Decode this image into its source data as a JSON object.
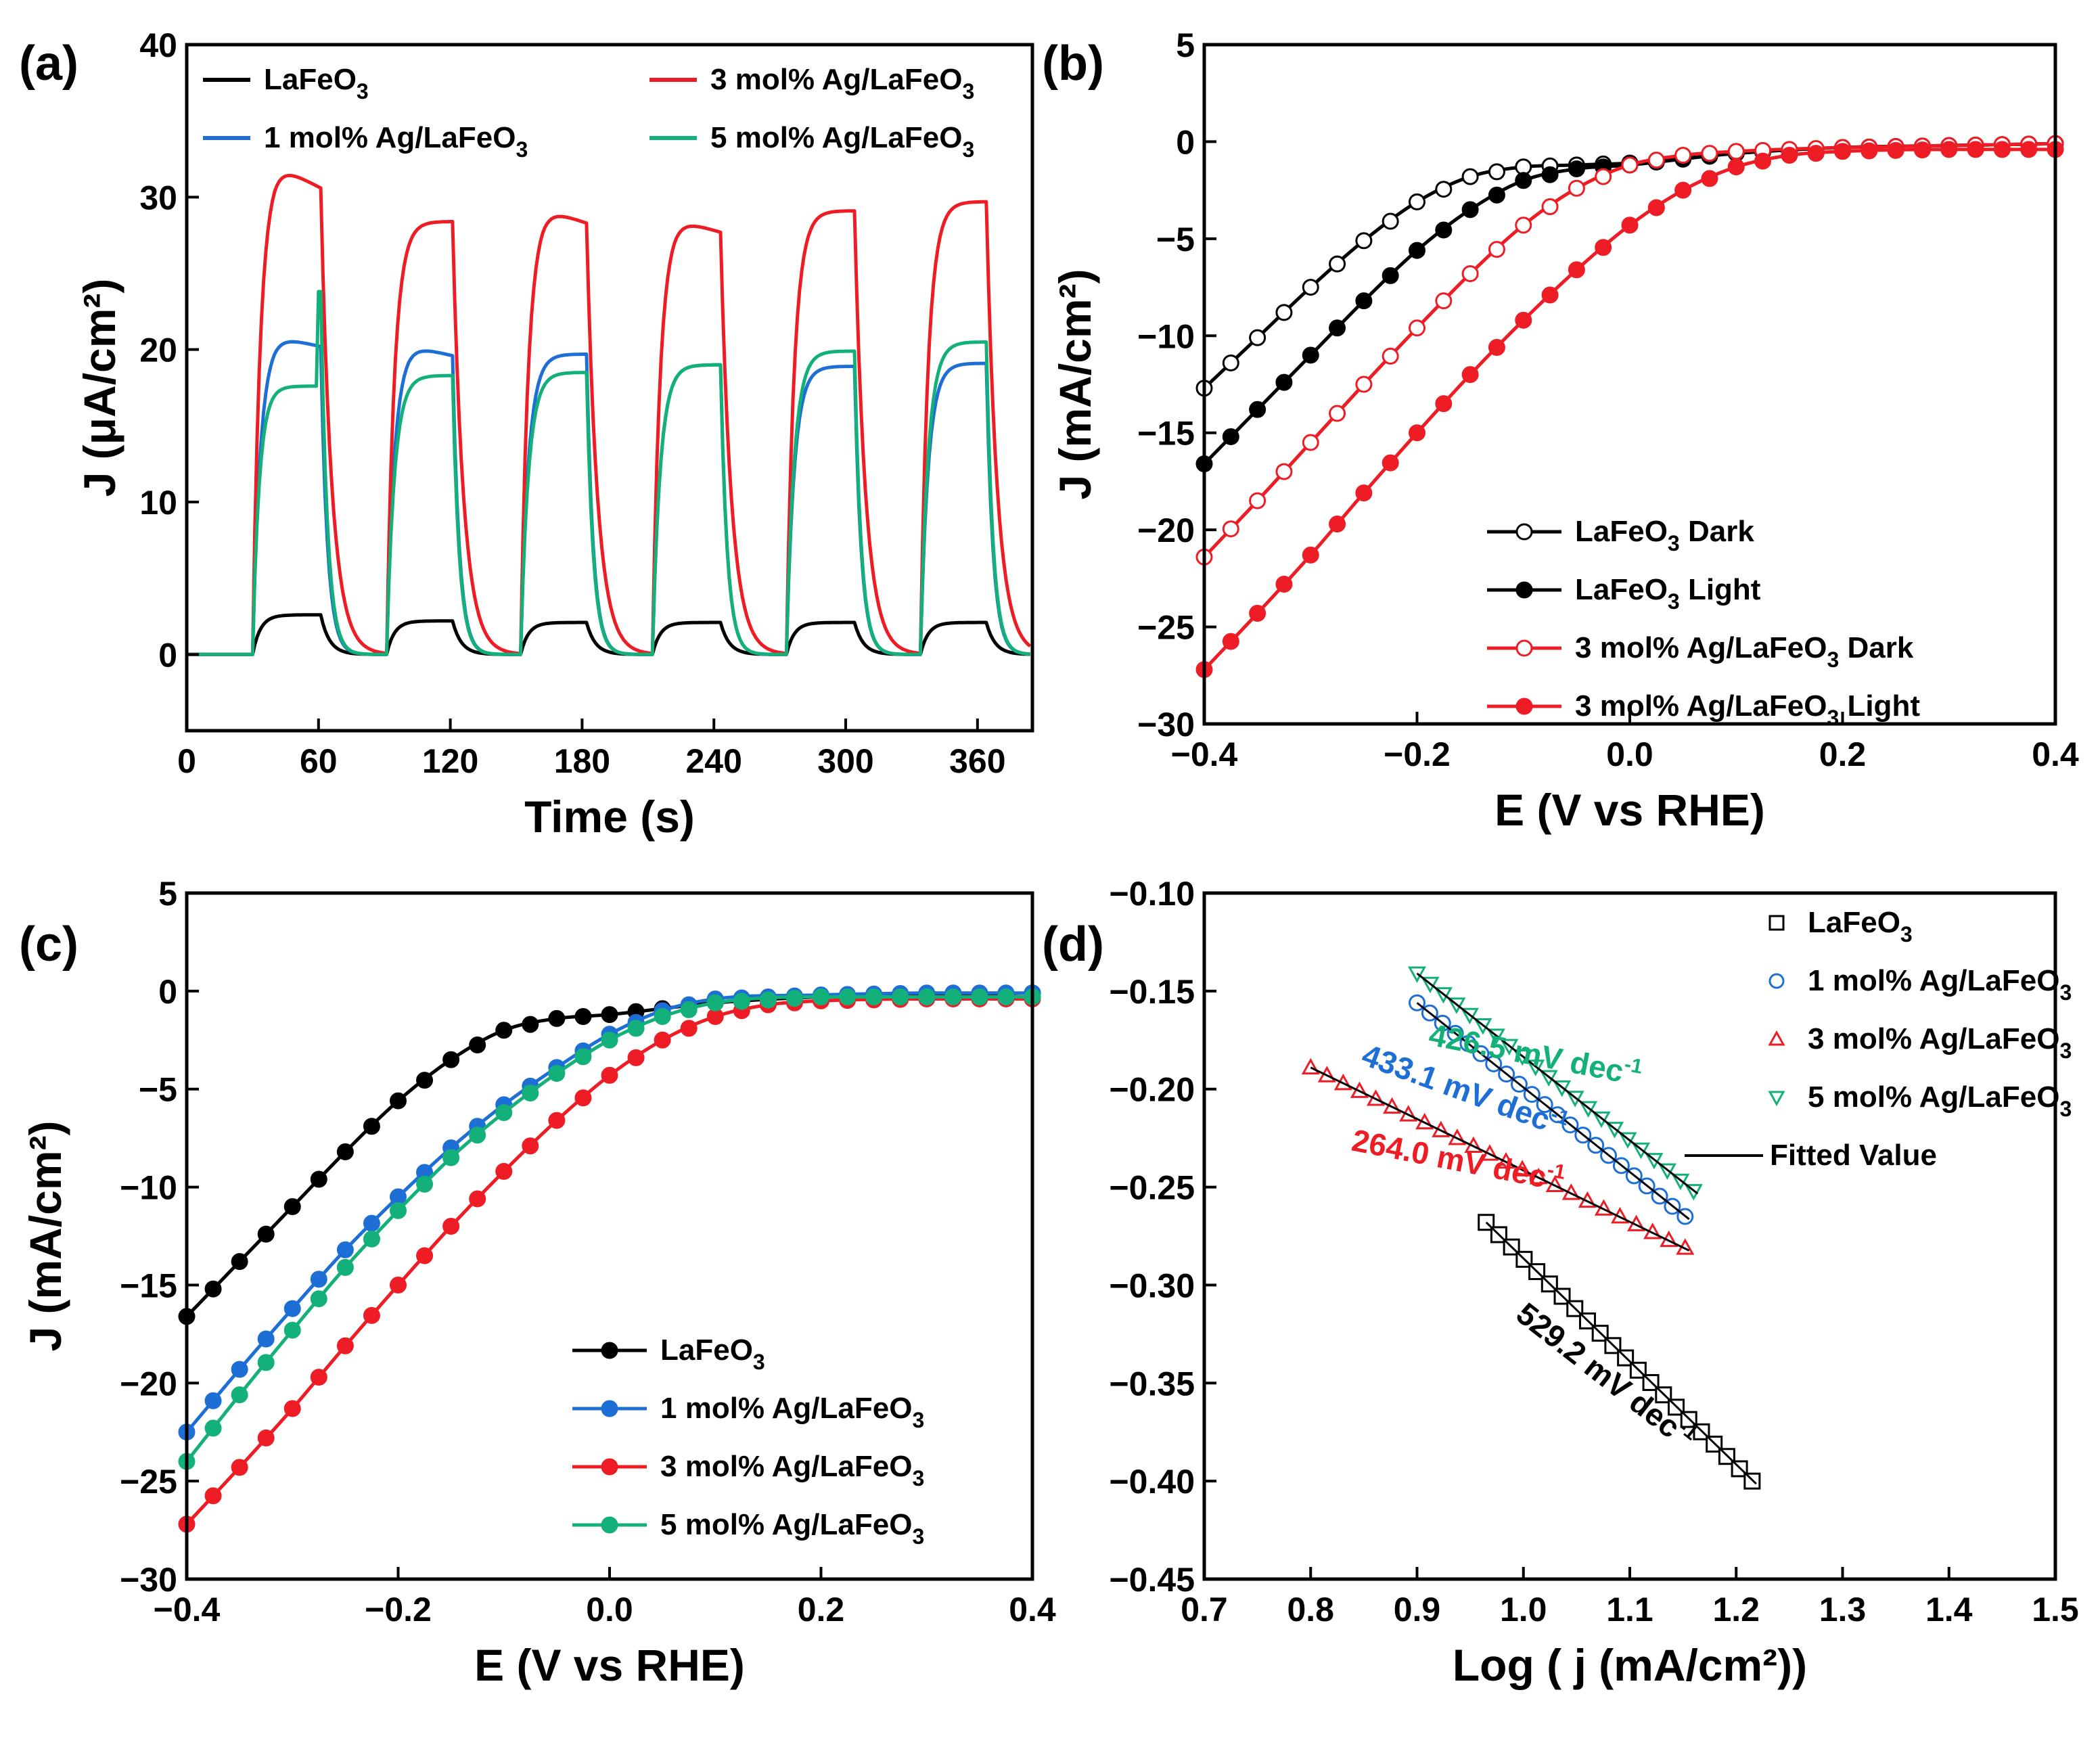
{
  "colors": {
    "black": "#000000",
    "blue": "#1d6fd6",
    "red": "#ee1c25",
    "green": "#14b07a",
    "red_light": "#f08a8a"
  },
  "chart_data": [
    {
      "panel": "(a)",
      "type": "line",
      "xlabel": "Time (s)",
      "ylabel": "J (μA/cm²)",
      "xlim": [
        0,
        385
      ],
      "ylim": [
        -5,
        40
      ],
      "xticks": [
        0,
        60,
        120,
        180,
        240,
        300,
        360
      ],
      "yticks": [
        0,
        10,
        20,
        30,
        40
      ],
      "cycles": [
        [
          30,
          61
        ],
        [
          91,
          121
        ],
        [
          152,
          182
        ],
        [
          212,
          243
        ],
        [
          273,
          304
        ],
        [
          334,
          364
        ]
      ],
      "legend_position": "top",
      "series": [
        {
          "name": "LaFeO3",
          "label": "LaFeO",
          "sub": "3",
          "suffix": "",
          "color": "#000000",
          "plateau": [
            2.6,
            2.2,
            2.1,
            2.1,
            2.1,
            2.1
          ],
          "peak": [
            2.6,
            2.2,
            2.1,
            2.1,
            2.1,
            2.1
          ]
        },
        {
          "name": "1 mol% Ag/LaFeO3",
          "label": "1 mol% Ag/LaFeO",
          "sub": "3",
          "suffix": "",
          "color": "#1d6fd6",
          "plateau": [
            20.2,
            19.6,
            19.7,
            19.0,
            18.9,
            19.1
          ],
          "peak": [
            20.9,
            20.3,
            19.8,
            19.1,
            19.0,
            19.3
          ]
        },
        {
          "name": "3 mol% Ag/LaFeO3",
          "label": "3 mol% Ag/LaFeO",
          "sub": "3",
          "suffix": "",
          "color": "#ee1c25",
          "plateau": [
            30.6,
            28.4,
            28.3,
            27.7,
            29.1,
            29.7
          ],
          "peak": [
            32.2,
            28.7,
            29.3,
            28.6,
            29.2,
            30.0
          ]
        },
        {
          "name": "5 mol% Ag/LaFeO3",
          "label": "5 mol% Ag/LaFeO",
          "sub": "3",
          "suffix": "",
          "color": "#14b07a",
          "plateau": [
            17.6,
            18.3,
            18.5,
            19.0,
            19.9,
            20.5
          ],
          "peak": [
            23.8,
            18.3,
            18.5,
            19.0,
            19.9,
            20.5
          ]
        }
      ]
    },
    {
      "panel": "(b)",
      "type": "line",
      "xlabel": "E (V vs RHE)",
      "ylabel": "J (mA/cm²)",
      "xlim": [
        -0.4,
        0.4
      ],
      "ylim": [
        -30,
        5
      ],
      "xticks": [
        -0.4,
        -0.2,
        0.0,
        0.2,
        0.4
      ],
      "yticks": [
        5,
        0,
        -5,
        -10,
        -15,
        -20,
        -25,
        -30
      ],
      "legend_position": "bottom-right",
      "series": [
        {
          "name": "LaFeO3 Dark",
          "label": "LaFeO",
          "sub": "3",
          "suffix": " Dark",
          "color": "#000000",
          "marker": "open",
          "x": [
            -0.4,
            -0.35,
            -0.3,
            -0.25,
            -0.2,
            -0.15,
            -0.1,
            -0.05,
            0.0,
            0.1,
            0.2,
            0.3,
            0.4
          ],
          "y": [
            -12.7,
            -10.1,
            -7.5,
            -5.1,
            -3.1,
            -1.8,
            -1.3,
            -1.2,
            -1.1,
            -0.6,
            -0.3,
            -0.2,
            -0.1
          ]
        },
        {
          "name": "LaFeO3 Light",
          "label": "LaFeO",
          "sub": "3",
          "suffix": " Light",
          "color": "#000000",
          "marker": "filled",
          "x": [
            -0.4,
            -0.35,
            -0.3,
            -0.25,
            -0.2,
            -0.15,
            -0.1,
            -0.05,
            0.0,
            0.1,
            0.2,
            0.3,
            0.4
          ],
          "y": [
            -16.6,
            -13.8,
            -11.0,
            -8.2,
            -5.6,
            -3.5,
            -2.0,
            -1.4,
            -1.2,
            -0.6,
            -0.3,
            -0.2,
            -0.1
          ]
        },
        {
          "name": "3 mol% Ag/LaFeO3 Dark",
          "label": "3 mol% Ag/LaFeO",
          "sub": "3",
          "suffix": " Dark",
          "color": "#ee1c25",
          "marker": "open",
          "x": [
            -0.4,
            -0.35,
            -0.3,
            -0.25,
            -0.2,
            -0.15,
            -0.1,
            -0.05,
            0.0,
            0.05,
            0.1,
            0.2,
            0.3,
            0.4
          ],
          "y": [
            -21.4,
            -18.5,
            -15.5,
            -12.5,
            -9.6,
            -6.8,
            -4.3,
            -2.4,
            -1.2,
            -0.7,
            -0.5,
            -0.3,
            -0.2,
            -0.1
          ]
        },
        {
          "name": "3 mol% Ag/LaFeO3 Light",
          "label": "3 mol% Ag/LaFeO",
          "sub": "3",
          "suffix": " Light",
          "color": "#ee1c25",
          "marker": "filled",
          "x": [
            -0.4,
            -0.35,
            -0.3,
            -0.25,
            -0.2,
            -0.15,
            -0.1,
            -0.05,
            0.0,
            0.05,
            0.1,
            0.15,
            0.2,
            0.3,
            0.4
          ],
          "y": [
            -27.2,
            -24.3,
            -21.3,
            -18.1,
            -15.0,
            -12.0,
            -9.2,
            -6.6,
            -4.3,
            -2.5,
            -1.3,
            -0.7,
            -0.5,
            -0.4,
            -0.4
          ]
        }
      ]
    },
    {
      "panel": "(c)",
      "type": "line",
      "xlabel": "E (V vs RHE)",
      "ylabel": "J (mA/cm²)",
      "xlim": [
        -0.4,
        0.4
      ],
      "ylim": [
        -30,
        5
      ],
      "xticks": [
        -0.4,
        -0.2,
        0.0,
        0.2,
        0.4
      ],
      "yticks": [
        5,
        0,
        -5,
        -10,
        -15,
        -20,
        -25,
        -30
      ],
      "legend_position": "bottom-right",
      "series": [
        {
          "name": "LaFeO3",
          "label": "LaFeO",
          "sub": "3",
          "suffix": "",
          "color": "#000000",
          "marker": "filled",
          "x": [
            -0.4,
            -0.35,
            -0.3,
            -0.25,
            -0.2,
            -0.15,
            -0.1,
            -0.05,
            0.0,
            0.1,
            0.2,
            0.3,
            0.4
          ],
          "y": [
            -16.6,
            -13.8,
            -11.0,
            -8.2,
            -5.6,
            -3.5,
            -2.0,
            -1.4,
            -1.2,
            -0.6,
            -0.3,
            -0.2,
            -0.1
          ]
        },
        {
          "name": "1 mol% Ag/LaFeO3",
          "label": "1 mol% Ag/LaFeO",
          "sub": "3",
          "suffix": "",
          "color": "#1d6fd6",
          "marker": "filled",
          "x": [
            -0.4,
            -0.35,
            -0.3,
            -0.25,
            -0.2,
            -0.15,
            -0.1,
            -0.05,
            0.0,
            0.05,
            0.1,
            0.2,
            0.3,
            0.4
          ],
          "y": [
            -22.5,
            -19.3,
            -16.2,
            -13.2,
            -10.5,
            -8.0,
            -5.8,
            -3.9,
            -2.2,
            -1.0,
            -0.4,
            -0.2,
            -0.1,
            -0.1
          ]
        },
        {
          "name": "3 mol% Ag/LaFeO3",
          "label": "3 mol% Ag/LaFeO",
          "sub": "3",
          "suffix": "",
          "color": "#ee1c25",
          "marker": "filled",
          "x": [
            -0.4,
            -0.35,
            -0.3,
            -0.25,
            -0.2,
            -0.15,
            -0.1,
            -0.05,
            0.0,
            0.05,
            0.1,
            0.15,
            0.2,
            0.3,
            0.4
          ],
          "y": [
            -27.2,
            -24.3,
            -21.3,
            -18.1,
            -15.0,
            -12.0,
            -9.2,
            -6.6,
            -4.3,
            -2.5,
            -1.3,
            -0.7,
            -0.5,
            -0.4,
            -0.4
          ]
        },
        {
          "name": "5 mol% Ag/LaFeO3",
          "label": "5 mol% Ag/LaFeO",
          "sub": "3",
          "suffix": "",
          "color": "#14b07a",
          "marker": "filled",
          "x": [
            -0.4,
            -0.35,
            -0.3,
            -0.25,
            -0.2,
            -0.15,
            -0.1,
            -0.05,
            0.0,
            0.05,
            0.1,
            0.2,
            0.3,
            0.4
          ],
          "y": [
            -24.0,
            -20.6,
            -17.3,
            -14.1,
            -11.2,
            -8.5,
            -6.2,
            -4.2,
            -2.5,
            -1.3,
            -0.6,
            -0.3,
            -0.3,
            -0.3
          ]
        }
      ]
    },
    {
      "panel": "(d)",
      "type": "scatter",
      "xlabel": "Log ( j (mA/cm²))",
      "ylabel": "",
      "xlim": [
        0.7,
        1.5
      ],
      "ylim": [
        -0.45,
        -0.1
      ],
      "xticks": [
        0.7,
        0.8,
        0.9,
        1.0,
        1.1,
        1.2,
        1.3,
        1.4,
        1.5
      ],
      "yticks": [
        -0.1,
        -0.15,
        -0.2,
        -0.25,
        -0.3,
        -0.35,
        -0.4,
        -0.45
      ],
      "legend_position": "top-right",
      "fit_label": "Fitted Value",
      "series": [
        {
          "name": "LaFeO3",
          "label": "LaFeO",
          "sub": "3",
          "color": "#000000",
          "marker": "square",
          "x_range": [
            0.965,
            1.215
          ],
          "y_range": [
            -0.268,
            -0.4
          ],
          "points": 22,
          "tafel": "529.2 mV dec",
          "tafel_sup": "-1"
        },
        {
          "name": "1 mol% Ag/LaFeO3",
          "label": "1 mol% Ag/LaFeO",
          "sub": "3",
          "color": "#1d6fd6",
          "marker": "circle",
          "x_range": [
            0.9,
            1.152
          ],
          "y_range": [
            -0.156,
            -0.265
          ],
          "points": 22,
          "tafel": "433.1 mV dec",
          "tafel_sup": "-1"
        },
        {
          "name": "3 mol% Ag/LaFeO3",
          "label": "3 mol% Ag/LaFeO",
          "sub": "3",
          "color": "#ee1c25",
          "marker": "triangle-up",
          "x_range": [
            0.8,
            1.152
          ],
          "y_range": [
            -0.189,
            -0.281
          ],
          "points": 24,
          "tafel": "264.0 mV dec",
          "tafel_sup": "-1"
        },
        {
          "name": "5 mol% Ag/LaFeO3",
          "label": "5 mol% Ag/LaFeO",
          "sub": "3",
          "color": "#14b07a",
          "marker": "triangle-down",
          "x_range": [
            0.9,
            1.16
          ],
          "y_range": [
            -0.141,
            -0.252
          ],
          "points": 22,
          "tafel": "426.5 mV dec",
          "tafel_sup": "-1"
        }
      ]
    }
  ]
}
